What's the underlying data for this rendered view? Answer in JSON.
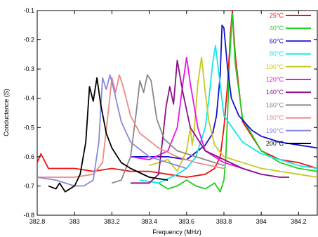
{
  "chart_data": {
    "type": "line",
    "title": "",
    "xlabel": "Frequency (MHz)",
    "ylabel": "Conductance (S)",
    "xlim": [
      382.8,
      384.3
    ],
    "ylim": [
      -0.8,
      -0.1
    ],
    "x_ticks": [
      "382.8",
      "383",
      "383.2",
      "383.4",
      "383.6",
      "383.8",
      "384",
      "384.2"
    ],
    "y_ticks": [
      "-0.8",
      "-0.7",
      "-0.6",
      "-0.5",
      "-0.4",
      "-0.3",
      "-0.2",
      "-0.1"
    ],
    "grid": false,
    "legend_position": "top-right",
    "series": [
      {
        "name": "25°C",
        "color": "#ee1111",
        "x": [
          382.8,
          382.82,
          382.86,
          382.9,
          383.0,
          383.1,
          383.2,
          383.3,
          383.4,
          383.5,
          383.6,
          383.7,
          383.75,
          383.78,
          383.8,
          383.82,
          383.835,
          383.845,
          383.86,
          383.9,
          384.0,
          384.1,
          384.2,
          384.3
        ],
        "y": [
          -0.62,
          -0.59,
          -0.64,
          -0.64,
          -0.64,
          -0.65,
          -0.64,
          -0.65,
          -0.65,
          -0.66,
          -0.67,
          -0.66,
          -0.64,
          -0.6,
          -0.5,
          -0.35,
          -0.18,
          -0.1,
          -0.25,
          -0.48,
          -0.58,
          -0.61,
          -0.62,
          -0.64
        ]
      },
      {
        "name": "40°C",
        "color": "#22cc22",
        "x": [
          383.45,
          383.5,
          383.55,
          383.6,
          383.65,
          383.7,
          383.75,
          383.78,
          383.8,
          383.81,
          383.82,
          383.83,
          383.845,
          383.86,
          383.9,
          384.0,
          384.1,
          384.2,
          384.3
        ],
        "y": [
          -0.69,
          -0.71,
          -0.7,
          -0.68,
          -0.7,
          -0.71,
          -0.69,
          -0.72,
          -0.68,
          -0.6,
          -0.45,
          -0.27,
          -0.11,
          -0.28,
          -0.47,
          -0.58,
          -0.62,
          -0.64,
          -0.65
        ]
      },
      {
        "name": "60°C",
        "color": "#1111cc",
        "x": [
          383.3,
          383.4,
          383.5,
          383.6,
          383.7,
          383.74,
          383.76,
          383.78,
          383.79,
          383.8,
          383.82,
          383.84,
          383.88,
          383.95,
          384.0,
          384.1,
          384.2,
          384.3
        ],
        "y": [
          -0.6,
          -0.6,
          -0.6,
          -0.61,
          -0.56,
          -0.52,
          -0.46,
          -0.32,
          -0.15,
          -0.16,
          -0.3,
          -0.4,
          -0.46,
          -0.51,
          -0.53,
          -0.55,
          -0.56,
          -0.57
        ]
      },
      {
        "name": "80°C",
        "color": "#11e8e8",
        "x": [
          383.35,
          383.45,
          383.55,
          383.6,
          383.65,
          383.7,
          383.72,
          383.74,
          383.755,
          383.77,
          383.8,
          383.9,
          384.0,
          384.1,
          384.2,
          384.3
        ],
        "y": [
          -0.68,
          -0.69,
          -0.66,
          -0.64,
          -0.6,
          -0.5,
          -0.4,
          -0.28,
          -0.22,
          -0.3,
          -0.46,
          -0.55,
          -0.59,
          -0.61,
          -0.63,
          -0.64
        ]
      },
      {
        "name": "100°C",
        "color": "#c8c822",
        "x": [
          383.4,
          383.5,
          383.55,
          383.6,
          383.62,
          383.63,
          383.64,
          383.66,
          383.68,
          383.7,
          383.72,
          383.75,
          383.8,
          383.9,
          384.0,
          384.1,
          384.2,
          384.3
        ],
        "y": [
          -0.63,
          -0.61,
          -0.65,
          -0.58,
          -0.5,
          -0.56,
          -0.52,
          -0.35,
          -0.26,
          -0.38,
          -0.48,
          -0.56,
          -0.6,
          -0.62,
          -0.64,
          -0.65,
          -0.66,
          -0.67
        ]
      },
      {
        "name": "120°C",
        "color": "#ee11ee",
        "x": [
          383.3,
          383.4,
          383.5,
          383.55,
          383.58,
          383.6,
          383.62,
          383.66,
          383.7,
          383.8,
          383.9,
          384.0
        ],
        "y": [
          -0.6,
          -0.61,
          -0.58,
          -0.5,
          -0.35,
          -0.26,
          -0.35,
          -0.5,
          -0.58,
          -0.62,
          -0.64,
          -0.66
        ]
      },
      {
        "name": "140°C",
        "color": "#881188",
        "x": [
          383.3,
          383.4,
          383.45,
          383.47,
          383.49,
          383.51,
          383.53,
          383.55,
          383.58,
          383.62,
          383.7,
          383.8,
          383.9,
          384.0,
          384.1,
          384.15
        ],
        "y": [
          -0.69,
          -0.69,
          -0.66,
          -0.55,
          -0.43,
          -0.36,
          -0.42,
          -0.27,
          -0.38,
          -0.5,
          -0.58,
          -0.61,
          -0.64,
          -0.66,
          -0.67,
          -0.67
        ]
      },
      {
        "name": "160°C",
        "color": "#888888",
        "x": [
          383.2,
          383.25,
          383.3,
          383.33,
          383.35,
          383.37,
          383.39,
          383.41,
          383.44,
          383.48,
          383.55,
          383.65,
          383.75,
          383.8
        ],
        "y": [
          -0.69,
          -0.68,
          -0.6,
          -0.45,
          -0.34,
          -0.38,
          -0.32,
          -0.34,
          -0.47,
          -0.54,
          -0.58,
          -0.6,
          -0.62,
          -0.63
        ]
      },
      {
        "name": "180°C",
        "color": "#ee8888",
        "x": [
          382.8,
          382.9,
          383.0,
          383.1,
          383.15,
          383.18,
          383.2,
          383.22,
          383.24,
          383.26,
          383.3,
          383.35,
          383.45,
          383.55,
          383.65,
          383.8
        ],
        "y": [
          -0.67,
          -0.67,
          -0.67,
          -0.66,
          -0.62,
          -0.45,
          -0.33,
          -0.38,
          -0.32,
          -0.36,
          -0.46,
          -0.52,
          -0.57,
          -0.6,
          -0.62,
          -0.64
        ]
      },
      {
        "name": "190°C",
        "color": "#8888dd",
        "x": [
          382.8,
          382.9,
          383.0,
          383.05,
          383.1,
          383.13,
          383.15,
          383.17,
          383.19,
          383.21,
          383.25,
          383.3,
          383.4,
          383.5,
          383.6
        ],
        "y": [
          -0.67,
          -0.68,
          -0.7,
          -0.7,
          -0.68,
          -0.55,
          -0.33,
          -0.37,
          -0.32,
          -0.37,
          -0.48,
          -0.55,
          -0.6,
          -0.62,
          -0.64
        ]
      },
      {
        "name": "200°C",
        "color": "#000000",
        "x": [
          382.86,
          382.9,
          382.92,
          382.95,
          383.0,
          383.03,
          383.06,
          383.08,
          383.1,
          383.12,
          383.14,
          383.17,
          383.2,
          383.25,
          383.3,
          383.4,
          383.5
        ],
        "y": [
          -0.7,
          -0.71,
          -0.69,
          -0.72,
          -0.7,
          -0.66,
          -0.55,
          -0.36,
          -0.41,
          -0.33,
          -0.42,
          -0.52,
          -0.57,
          -0.62,
          -0.64,
          -0.67,
          -0.68
        ]
      }
    ]
  }
}
